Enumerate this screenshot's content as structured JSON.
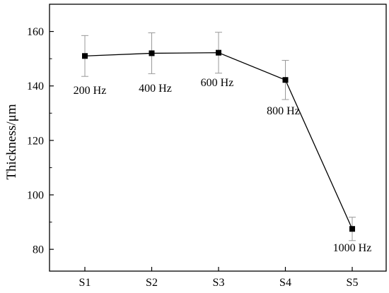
{
  "chart_data": {
    "type": "line",
    "title": "",
    "xlabel": "",
    "ylabel": "Thickness/μm",
    "categories": [
      "S1",
      "S2",
      "S3",
      "S4",
      "S5"
    ],
    "values": [
      151,
      152,
      152.2,
      142.2,
      87.5
    ],
    "error": [
      7.5,
      7.5,
      7.5,
      7.2,
      4.3
    ],
    "annotations": [
      "200 Hz",
      "400 Hz",
      "600 Hz",
      "800 Hz",
      "1000 Hz"
    ],
    "ylim": [
      72,
      170
    ],
    "yticks": [
      80,
      100,
      120,
      140,
      160
    ],
    "grid": false,
    "legend": "none",
    "colors": {
      "line": "#000000",
      "marker": "#000000",
      "errorbar": "#999999"
    }
  }
}
